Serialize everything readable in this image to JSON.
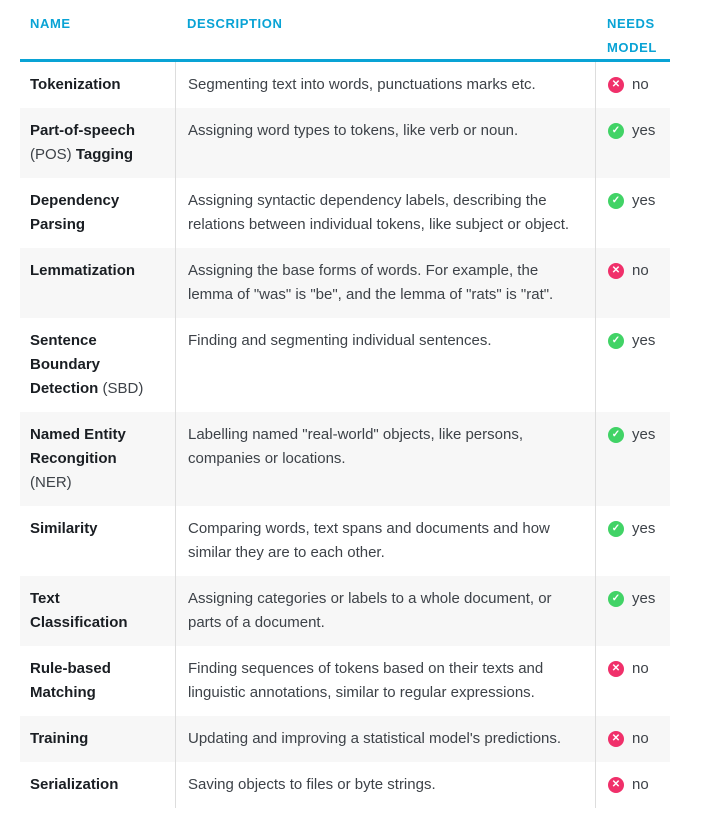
{
  "table": {
    "headers": [
      {
        "label": "NAME"
      },
      {
        "label": "DESCRIPTION"
      },
      {
        "label": "NEEDS MODEL"
      }
    ],
    "rows": [
      {
        "name_parts": [
          {
            "text": "Tokenization",
            "bold": true
          }
        ],
        "description": "Segmenting text into words, punctuations marks etc.",
        "needs_model": "no"
      },
      {
        "name_parts": [
          {
            "text": "Part-of-speech",
            "bold": true
          },
          {
            "text": " (POS) ",
            "bold": false
          },
          {
            "text": "Tagging",
            "bold": true
          }
        ],
        "description": "Assigning word types to tokens, like verb or noun.",
        "needs_model": "yes"
      },
      {
        "name_parts": [
          {
            "text": "Dependency Parsing",
            "bold": true
          }
        ],
        "description": "Assigning syntactic dependency labels, describing the relations between individual tokens, like subject or object.",
        "needs_model": "yes"
      },
      {
        "name_parts": [
          {
            "text": "Lemmatization",
            "bold": true
          }
        ],
        "description": "Assigning the base forms of words. For example, the lemma of \"was\" is \"be\", and the lemma of \"rats\" is \"rat\".",
        "needs_model": "no"
      },
      {
        "name_parts": [
          {
            "text": "Sentence Boundary Detection",
            "bold": true
          },
          {
            "text": " (SBD)",
            "bold": false
          }
        ],
        "description": "Finding and segmenting individual sentences.",
        "needs_model": "yes"
      },
      {
        "name_parts": [
          {
            "text": "Named Entity Recongition",
            "bold": true
          },
          {
            "text": " (NER)",
            "bold": false
          }
        ],
        "description": "Labelling named \"real-world\" objects, like persons, companies or locations.",
        "needs_model": "yes"
      },
      {
        "name_parts": [
          {
            "text": "Similarity",
            "bold": true
          }
        ],
        "description": "Comparing words, text spans and documents and how similar they are to each other.",
        "needs_model": "yes"
      },
      {
        "name_parts": [
          {
            "text": "Text Classification",
            "bold": true
          }
        ],
        "description": "Assigning categories or labels to a whole document, or parts of a document.",
        "needs_model": "yes"
      },
      {
        "name_parts": [
          {
            "text": "Rule-based Matching",
            "bold": true
          }
        ],
        "description": "Finding sequences of tokens based on their texts and linguistic annotations, similar to regular expressions.",
        "needs_model": "no"
      },
      {
        "name_parts": [
          {
            "text": "Training",
            "bold": true
          }
        ],
        "description": "Updating and improving a statistical model's predictions.",
        "needs_model": "no"
      },
      {
        "name_parts": [
          {
            "text": "Serialization",
            "bold": true
          }
        ],
        "description": "Saving objects to files or byte strings.",
        "needs_model": "no"
      }
    ]
  },
  "badges": {
    "yes": {
      "label": "yes",
      "icon": "check-circle-icon",
      "glyph": "✓",
      "color": "#41d366"
    },
    "no": {
      "label": "no",
      "icon": "x-circle-icon",
      "glyph": "✕",
      "color": "#f0306a"
    }
  },
  "colors": {
    "header_text": "#09a3d5",
    "header_rule": "#09a3d5",
    "row_alt_background": "#f7f7f7",
    "column_border": "#dddddd",
    "name_text": "#1a1e23",
    "description_text": "#3d4248"
  }
}
